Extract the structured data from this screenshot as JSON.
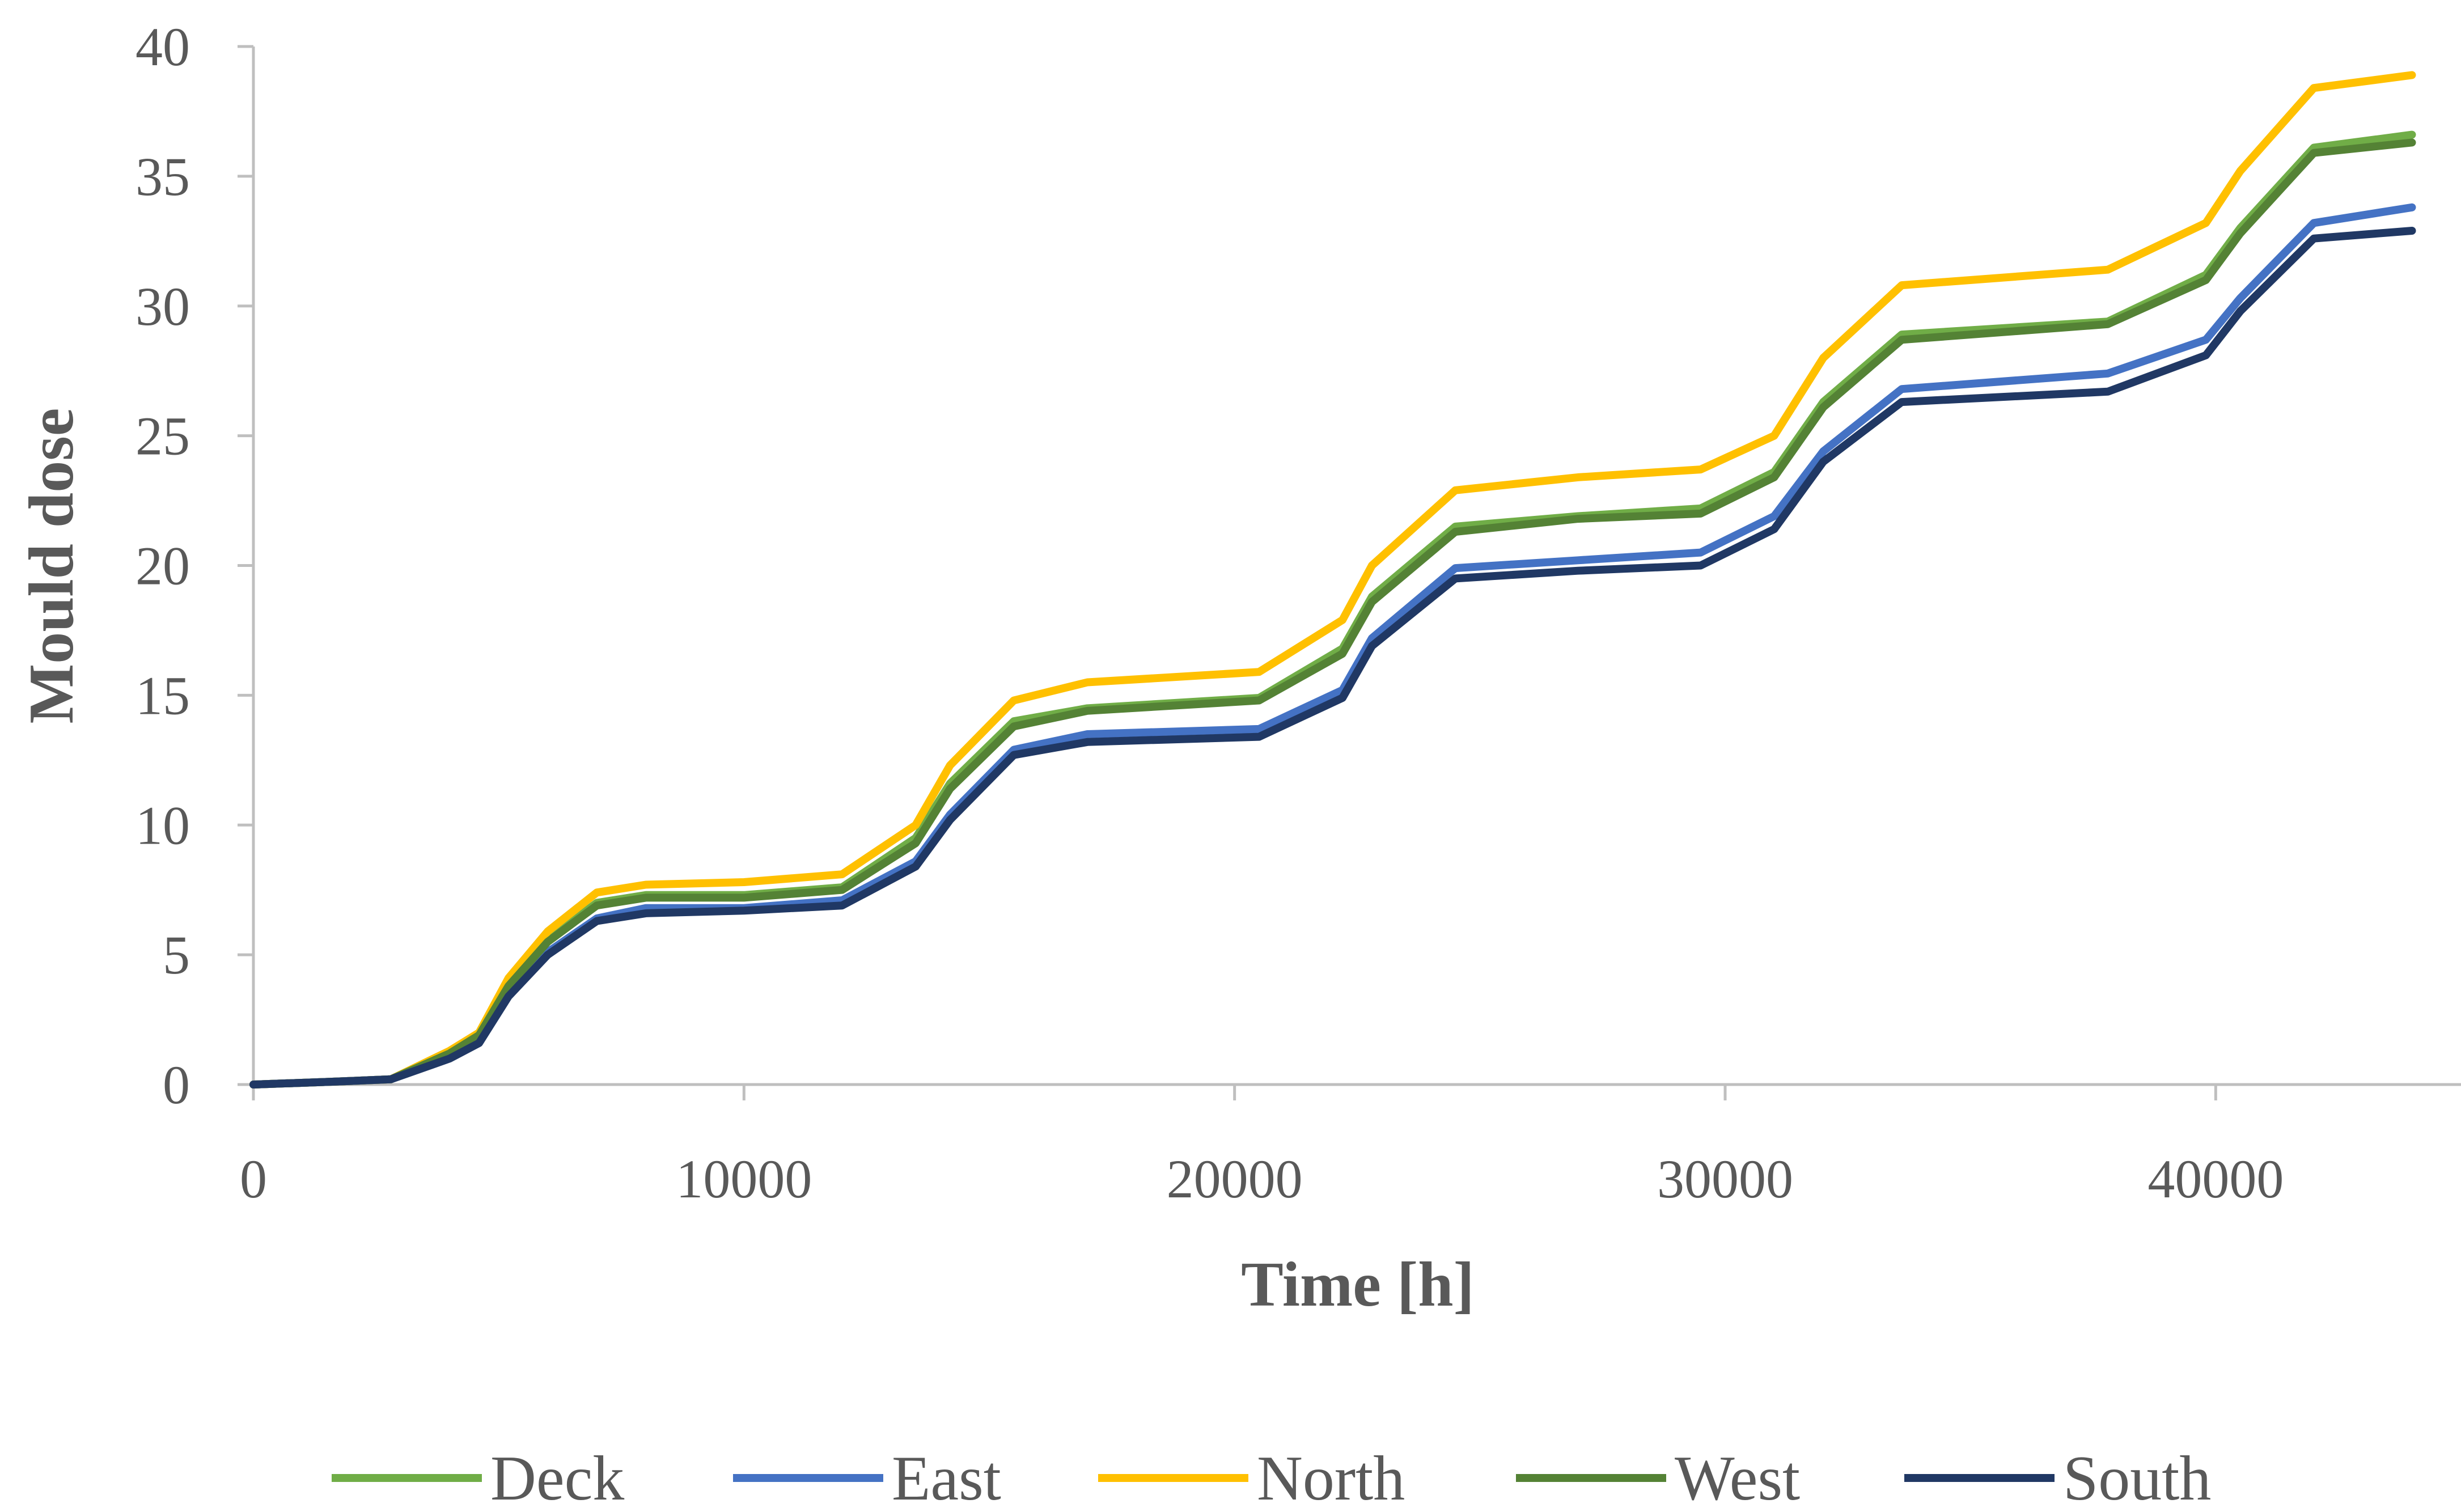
{
  "chart_data": {
    "type": "line",
    "title": "",
    "xlabel": "Time [h]",
    "ylabel": "Mould dose",
    "xlim": [
      0,
      45000
    ],
    "ylim": [
      0,
      40
    ],
    "xticks": [
      0,
      10000,
      20000,
      30000,
      40000
    ],
    "yticks": [
      0,
      5,
      10,
      15,
      20,
      25,
      30,
      35,
      40
    ],
    "grid": false,
    "legend_position": "bottom",
    "series": [
      {
        "name": "Deck",
        "color": "#70ad47",
        "x": [
          0,
          1500,
          2800,
          4000,
          4600,
          5200,
          6000,
          7000,
          8000,
          10000,
          12000,
          13500,
          14200,
          15500,
          17000,
          20500,
          22200,
          22800,
          24500,
          27000,
          29500,
          31000,
          32000,
          33600,
          37800,
          39800,
          40500,
          42000,
          44000
        ],
        "values": [
          0,
          0.1,
          0.2,
          1.2,
          1.9,
          3.9,
          5.6,
          7.0,
          7.3,
          7.3,
          7.6,
          9.5,
          11.6,
          14.0,
          14.5,
          14.9,
          16.8,
          18.8,
          21.5,
          21.9,
          22.2,
          23.6,
          26.3,
          28.9,
          29.4,
          31.2,
          33.0,
          36.1,
          36.6
        ]
      },
      {
        "name": "East",
        "color": "#4472c4",
        "x": [
          0,
          1500,
          2800,
          4000,
          4600,
          5200,
          6000,
          7000,
          8000,
          10000,
          12000,
          13500,
          14200,
          15500,
          17000,
          20500,
          22200,
          22800,
          24500,
          27000,
          29500,
          31000,
          32000,
          33600,
          37800,
          39800,
          40500,
          42000,
          44000
        ],
        "values": [
          0,
          0.1,
          0.2,
          1.1,
          1.7,
          3.5,
          5.1,
          6.4,
          6.8,
          6.8,
          7.1,
          8.6,
          10.4,
          12.9,
          13.5,
          13.7,
          15.2,
          17.2,
          19.9,
          20.2,
          20.5,
          21.9,
          24.4,
          26.8,
          27.4,
          28.7,
          30.3,
          33.2,
          33.8
        ]
      },
      {
        "name": "North",
        "color": "#ffc000",
        "x": [
          0,
          1500,
          2800,
          4000,
          4600,
          5200,
          6000,
          7000,
          8000,
          10000,
          12000,
          13500,
          14200,
          15500,
          17000,
          20500,
          22200,
          22800,
          24500,
          27000,
          29500,
          31000,
          32000,
          33600,
          37800,
          39800,
          40500,
          42000,
          44000
        ],
        "values": [
          0,
          0.1,
          0.2,
          1.3,
          2.0,
          4.1,
          5.9,
          7.4,
          7.7,
          7.8,
          8.1,
          10.0,
          12.3,
          14.8,
          15.5,
          15.9,
          17.9,
          20.0,
          22.9,
          23.4,
          23.7,
          25.0,
          28.0,
          30.8,
          31.4,
          33.2,
          35.2,
          38.4,
          38.9
        ]
      },
      {
        "name": "West",
        "color": "#548235",
        "x": [
          0,
          1500,
          2800,
          4000,
          4600,
          5200,
          6000,
          7000,
          8000,
          10000,
          12000,
          13500,
          14200,
          15500,
          17000,
          20500,
          22200,
          22800,
          24500,
          27000,
          29500,
          31000,
          32000,
          33600,
          37800,
          39800,
          40500,
          42000,
          44000
        ],
        "values": [
          0,
          0.1,
          0.2,
          1.2,
          1.9,
          3.8,
          5.5,
          6.9,
          7.2,
          7.2,
          7.5,
          9.3,
          11.4,
          13.8,
          14.4,
          14.8,
          16.6,
          18.6,
          21.3,
          21.8,
          22.0,
          23.4,
          26.1,
          28.7,
          29.3,
          31.0,
          32.8,
          35.9,
          36.3
        ]
      },
      {
        "name": "South",
        "color": "#203864",
        "x": [
          0,
          1500,
          2800,
          4000,
          4600,
          5200,
          6000,
          7000,
          8000,
          10000,
          12000,
          13500,
          14200,
          15500,
          17000,
          20500,
          22200,
          22800,
          24500,
          27000,
          29500,
          31000,
          32000,
          33600,
          37800,
          39800,
          40500,
          42000,
          44000
        ],
        "values": [
          0,
          0.1,
          0.2,
          1.0,
          1.6,
          3.4,
          5.0,
          6.3,
          6.6,
          6.7,
          6.9,
          8.4,
          10.2,
          12.7,
          13.2,
          13.4,
          14.9,
          16.9,
          19.5,
          19.8,
          20.0,
          21.4,
          24.0,
          26.3,
          26.7,
          28.1,
          29.8,
          32.6,
          32.9
        ]
      }
    ]
  }
}
